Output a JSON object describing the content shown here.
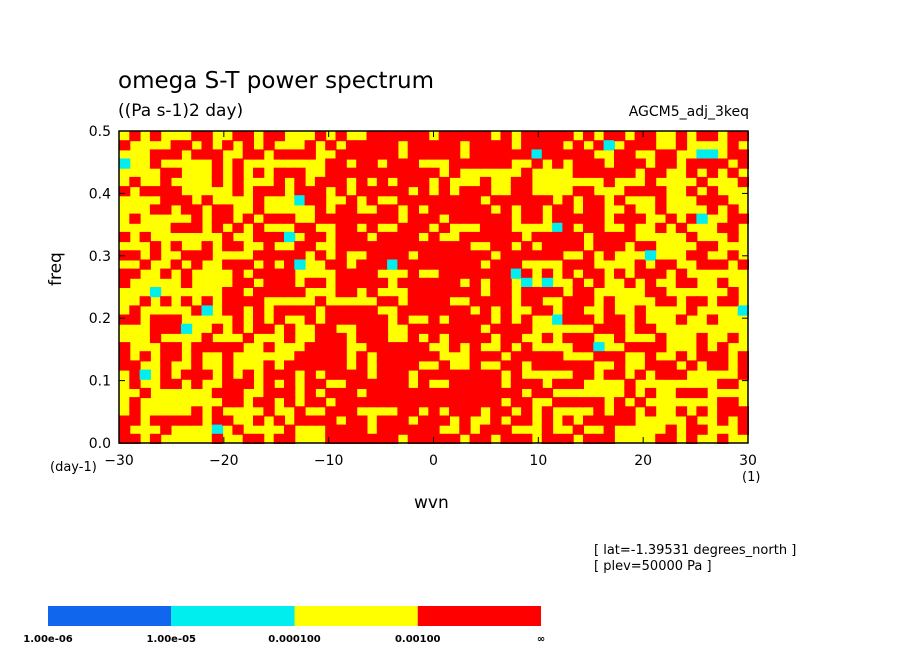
{
  "chart_data": {
    "type": "heatmap",
    "title": "omega S-T power spectrum",
    "subtitle": "((Pa s-1)2 day)",
    "run_label": "AGCM5_adj_3keq",
    "xlabel": "wvn",
    "ylabel": "freq",
    "x_unit": "(1)",
    "y_unit": "(day-1)",
    "xlim": [
      -30,
      30
    ],
    "ylim": [
      0,
      0.5
    ],
    "xticks": [
      "−30",
      "−20",
      "−10",
      "0",
      "10",
      "20",
      "30"
    ],
    "yticks": [
      "0.0",
      "0.1",
      "0.2",
      "0.3",
      "0.4",
      "0.5"
    ],
    "annotations": [
      "[ lat=-1.39531 degrees_north ]",
      "[ plev=50000 Pa ]"
    ],
    "colorbar": {
      "levels": [
        "1.00e-06",
        "1.00e-05",
        "0.000100",
        "0.00100",
        "∞"
      ],
      "colors": [
        "#1166ee",
        "#00eeee",
        "#ffff00",
        "#ff0000"
      ]
    },
    "dominant_field": {
      "background_level_color": "#ffff00",
      "high_power_color": "#ff0000",
      "high_power_concentration": "wvn -15 to 15, all freq"
    }
  }
}
